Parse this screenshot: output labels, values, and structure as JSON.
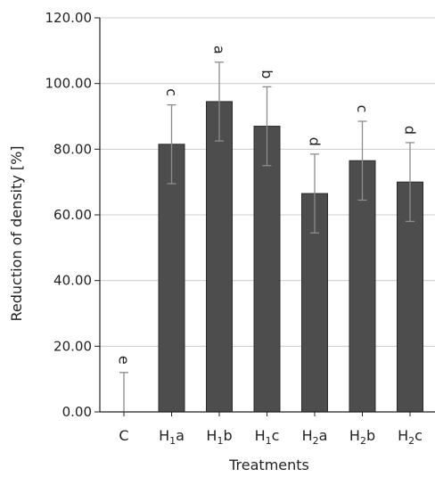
{
  "chart_data": {
    "type": "bar",
    "xlabel": "Treatments",
    "ylabel": "Reduction of density [%]",
    "ylim": [
      0,
      120
    ],
    "yticks": [
      "0.00",
      "20.00",
      "40.00",
      "60.00",
      "80.00",
      "100.00",
      "120.00"
    ],
    "grid": true,
    "categories": [
      {
        "label": "C",
        "base": "C",
        "sub": "",
        "suffix": ""
      },
      {
        "label": "H1a",
        "base": "H",
        "sub": "1",
        "suffix": "a"
      },
      {
        "label": "H1b",
        "base": "H",
        "sub": "1",
        "suffix": "b"
      },
      {
        "label": "H1c",
        "base": "H",
        "sub": "1",
        "suffix": "c"
      },
      {
        "label": "H2a",
        "base": "H",
        "sub": "2",
        "suffix": "a"
      },
      {
        "label": "H2b",
        "base": "H",
        "sub": "2",
        "suffix": "b"
      },
      {
        "label": "H2c",
        "base": "H",
        "sub": "2",
        "suffix": "c"
      }
    ],
    "values": [
      0,
      81.5,
      94.5,
      87,
      66.5,
      76.5,
      70
    ],
    "error": [
      12,
      12,
      12,
      12,
      12,
      12,
      12
    ],
    "significance_letters": [
      "e",
      "c",
      "a",
      "b",
      "d",
      "c",
      "d"
    ],
    "colors": {
      "bar": "#4d4d4d",
      "bar_edge": "#2b2b2b",
      "errorbar": "#8c8c8c",
      "grid": "#cccccc",
      "axis": "#222222"
    }
  }
}
